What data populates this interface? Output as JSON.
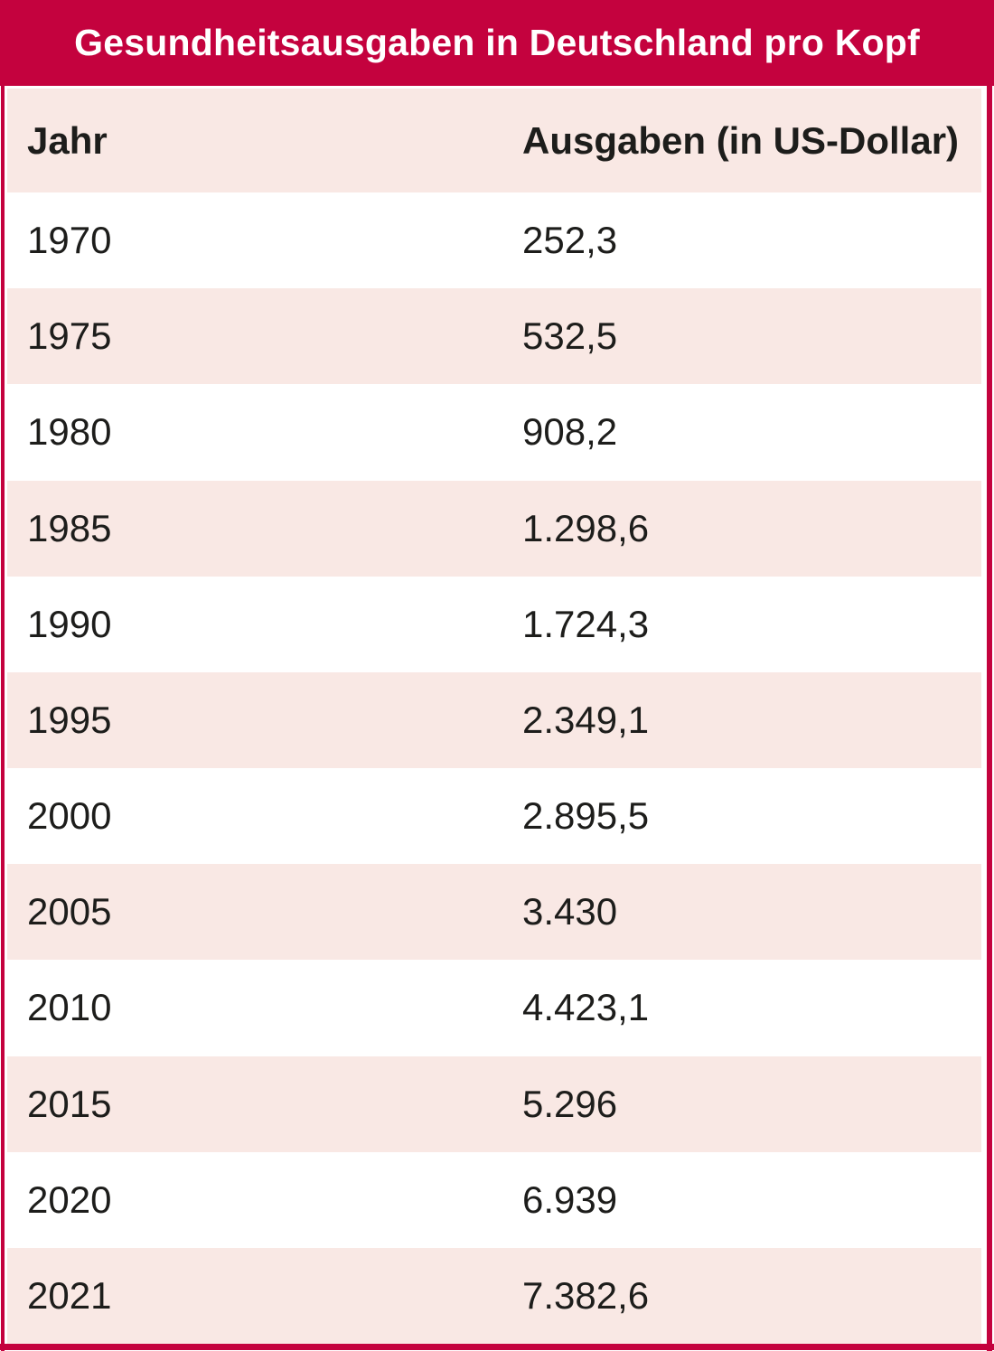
{
  "title": "Gesundheitsausgaben in Deutschland pro Kopf",
  "columns": {
    "year_label": "Jahr",
    "value_label": "Ausgaben (in US-Dollar)"
  },
  "rows": [
    {
      "year": "1970",
      "value": "252,3"
    },
    {
      "year": "1975",
      "value": "532,5"
    },
    {
      "year": "1980",
      "value": "908,2"
    },
    {
      "year": "1985",
      "value": "1.298,6"
    },
    {
      "year": "1990",
      "value": "1.724,3"
    },
    {
      "year": "1995",
      "value": "2.349,1"
    },
    {
      "year": "2000",
      "value": "2.895,5"
    },
    {
      "year": "2005",
      "value": "3.430"
    },
    {
      "year": "2010",
      "value": "4.423,1"
    },
    {
      "year": "2015",
      "value": "5.296"
    },
    {
      "year": "2020",
      "value": "6.939"
    },
    {
      "year": "2021",
      "value": "7.382,6"
    }
  ],
  "colors": {
    "accent_red": "#c4023e",
    "row_pink": "#f9e8e4",
    "text": "#1d1d1b",
    "title_text": "#ffffff"
  },
  "chart_data": {
    "type": "table",
    "title": "Gesundheitsausgaben in Deutschland pro Kopf",
    "columns": [
      "Jahr",
      "Ausgaben (in US-Dollar)"
    ],
    "categories": [
      "1970",
      "1975",
      "1980",
      "1985",
      "1990",
      "1995",
      "2000",
      "2005",
      "2010",
      "2015",
      "2020",
      "2021"
    ],
    "values": [
      252.3,
      532.5,
      908.2,
      1298.6,
      1724.3,
      2349.1,
      2895.5,
      3430,
      4423.1,
      5296,
      6939,
      7382.6
    ],
    "value_unit": "US-Dollar pro Kopf"
  }
}
